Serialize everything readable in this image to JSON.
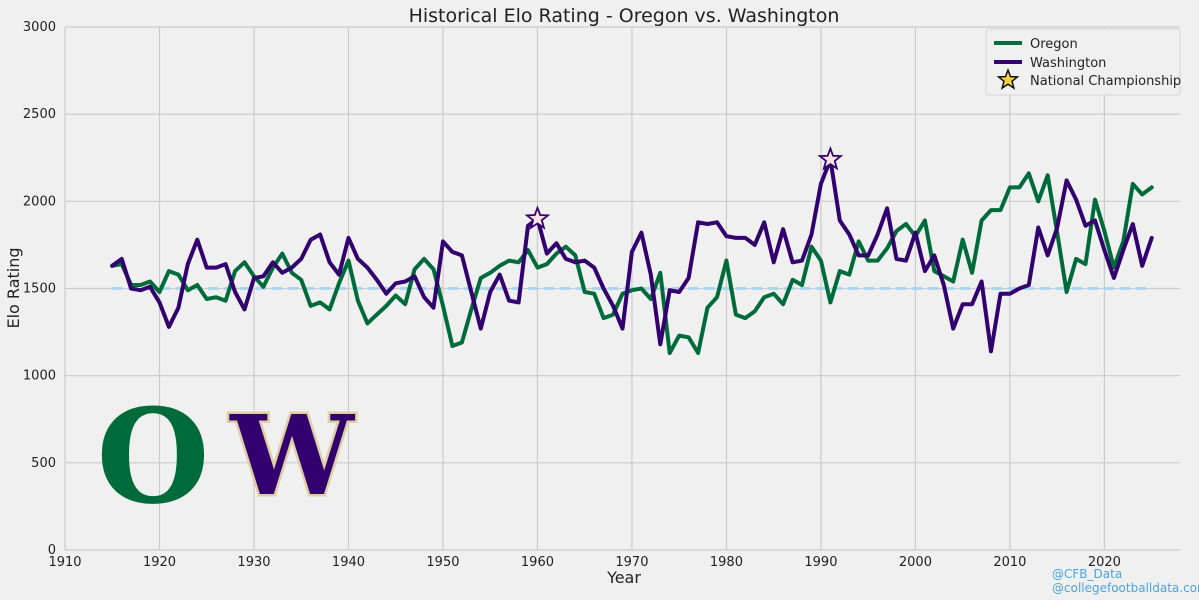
{
  "chart_data": {
    "type": "line",
    "title": "Historical Elo Rating - Oregon vs. Washington",
    "xlabel": "Year",
    "ylabel": "Elo Rating",
    "xlim": [
      1910,
      2028
    ],
    "ylim": [
      0,
      3000
    ],
    "xticks": [
      1910,
      1920,
      1930,
      1940,
      1950,
      1960,
      1970,
      1980,
      1990,
      2000,
      2010,
      2020
    ],
    "yticks": [
      0,
      500,
      1000,
      1500,
      2000,
      2500,
      3000
    ],
    "grid": true,
    "legend_position": "top-right",
    "baseline": 1500,
    "x": [
      1915,
      1916,
      1917,
      1918,
      1919,
      1920,
      1921,
      1922,
      1923,
      1924,
      1925,
      1926,
      1927,
      1928,
      1929,
      1930,
      1931,
      1932,
      1933,
      1934,
      1935,
      1936,
      1937,
      1938,
      1939,
      1940,
      1941,
      1942,
      1943,
      1944,
      1945,
      1946,
      1947,
      1948,
      1949,
      1950,
      1951,
      1952,
      1953,
      1954,
      1955,
      1956,
      1957,
      1958,
      1959,
      1960,
      1961,
      1962,
      1963,
      1964,
      1965,
      1966,
      1967,
      1968,
      1969,
      1970,
      1971,
      1972,
      1973,
      1974,
      1975,
      1976,
      1977,
      1978,
      1979,
      1980,
      1981,
      1982,
      1983,
      1984,
      1985,
      1986,
      1987,
      1988,
      1989,
      1990,
      1991,
      1992,
      1993,
      1994,
      1995,
      1996,
      1997,
      1998,
      1999,
      2000,
      2001,
      2002,
      2003,
      2004,
      2005,
      2006,
      2007,
      2008,
      2009,
      2010,
      2011,
      2012,
      2013,
      2014,
      2015,
      2016,
      2017,
      2018,
      2019,
      2020,
      2021,
      2022,
      2023,
      2024,
      2025
    ],
    "series": [
      {
        "name": "Oregon",
        "color": "#006b3a",
        "values": [
          1630,
          1640,
          1520,
          1520,
          1540,
          1480,
          1600,
          1580,
          1490,
          1520,
          1440,
          1450,
          1430,
          1600,
          1650,
          1570,
          1510,
          1620,
          1700,
          1590,
          1550,
          1400,
          1420,
          1380,
          1530,
          1660,
          1430,
          1300,
          1350,
          1400,
          1460,
          1410,
          1610,
          1670,
          1610,
          1400,
          1170,
          1190,
          1380,
          1560,
          1590,
          1630,
          1660,
          1650,
          1720,
          1620,
          1640,
          1700,
          1740,
          1690,
          1480,
          1470,
          1330,
          1350,
          1470,
          1490,
          1500,
          1440,
          1590,
          1130,
          1230,
          1220,
          1130,
          1390,
          1450,
          1660,
          1350,
          1330,
          1370,
          1450,
          1470,
          1410,
          1550,
          1520,
          1740,
          1660,
          1420,
          1600,
          1580,
          1770,
          1660,
          1660,
          1730,
          1830,
          1870,
          1800,
          1890,
          1600,
          1570,
          1540,
          1780,
          1590,
          1890,
          1950,
          1950,
          2080,
          2080,
          2160,
          2000,
          2150,
          1820,
          1480,
          1670,
          1640,
          2010,
          1830,
          1620,
          1770,
          2100,
          2040,
          2080
        ]
      },
      {
        "name": "Washington",
        "color": "#33006f",
        "values": [
          1630,
          1670,
          1500,
          1490,
          1510,
          1420,
          1280,
          1390,
          1640,
          1780,
          1620,
          1620,
          1640,
          1480,
          1380,
          1560,
          1570,
          1650,
          1590,
          1620,
          1670,
          1780,
          1810,
          1650,
          1580,
          1790,
          1670,
          1620,
          1550,
          1470,
          1530,
          1540,
          1570,
          1450,
          1390,
          1770,
          1710,
          1690,
          1480,
          1270,
          1480,
          1580,
          1430,
          1420,
          1860,
          1900,
          1700,
          1760,
          1670,
          1650,
          1660,
          1620,
          1500,
          1400,
          1270,
          1710,
          1820,
          1580,
          1180,
          1490,
          1480,
          1560,
          1880,
          1870,
          1880,
          1800,
          1790,
          1790,
          1750,
          1880,
          1650,
          1840,
          1650,
          1660,
          1810,
          2100,
          2240,
          1890,
          1810,
          1690,
          1690,
          1810,
          1960,
          1670,
          1660,
          1820,
          1600,
          1690,
          1520,
          1270,
          1410,
          1410,
          1540,
          1140,
          1470,
          1470,
          1500,
          1520,
          1850,
          1690,
          1850,
          2120,
          2010,
          1860,
          1890,
          1720,
          1560,
          1720,
          1870,
          1630,
          1790
        ]
      }
    ],
    "championships": {
      "name": "National Championship",
      "color": "#ffd040",
      "points": [
        {
          "x": 1960,
          "y": 1900,
          "team": "Washington"
        },
        {
          "x": 1991,
          "y": 2240,
          "team": "Washington"
        }
      ]
    },
    "logos": [
      {
        "icon": "oregon-o-logo",
        "letter": "O",
        "color": "#006b3a"
      },
      {
        "icon": "washington-w-logo",
        "letter": "W",
        "color": "#33006f"
      }
    ]
  },
  "credits": [
    "@CFB_Data",
    "@collegefootballdata.com"
  ]
}
